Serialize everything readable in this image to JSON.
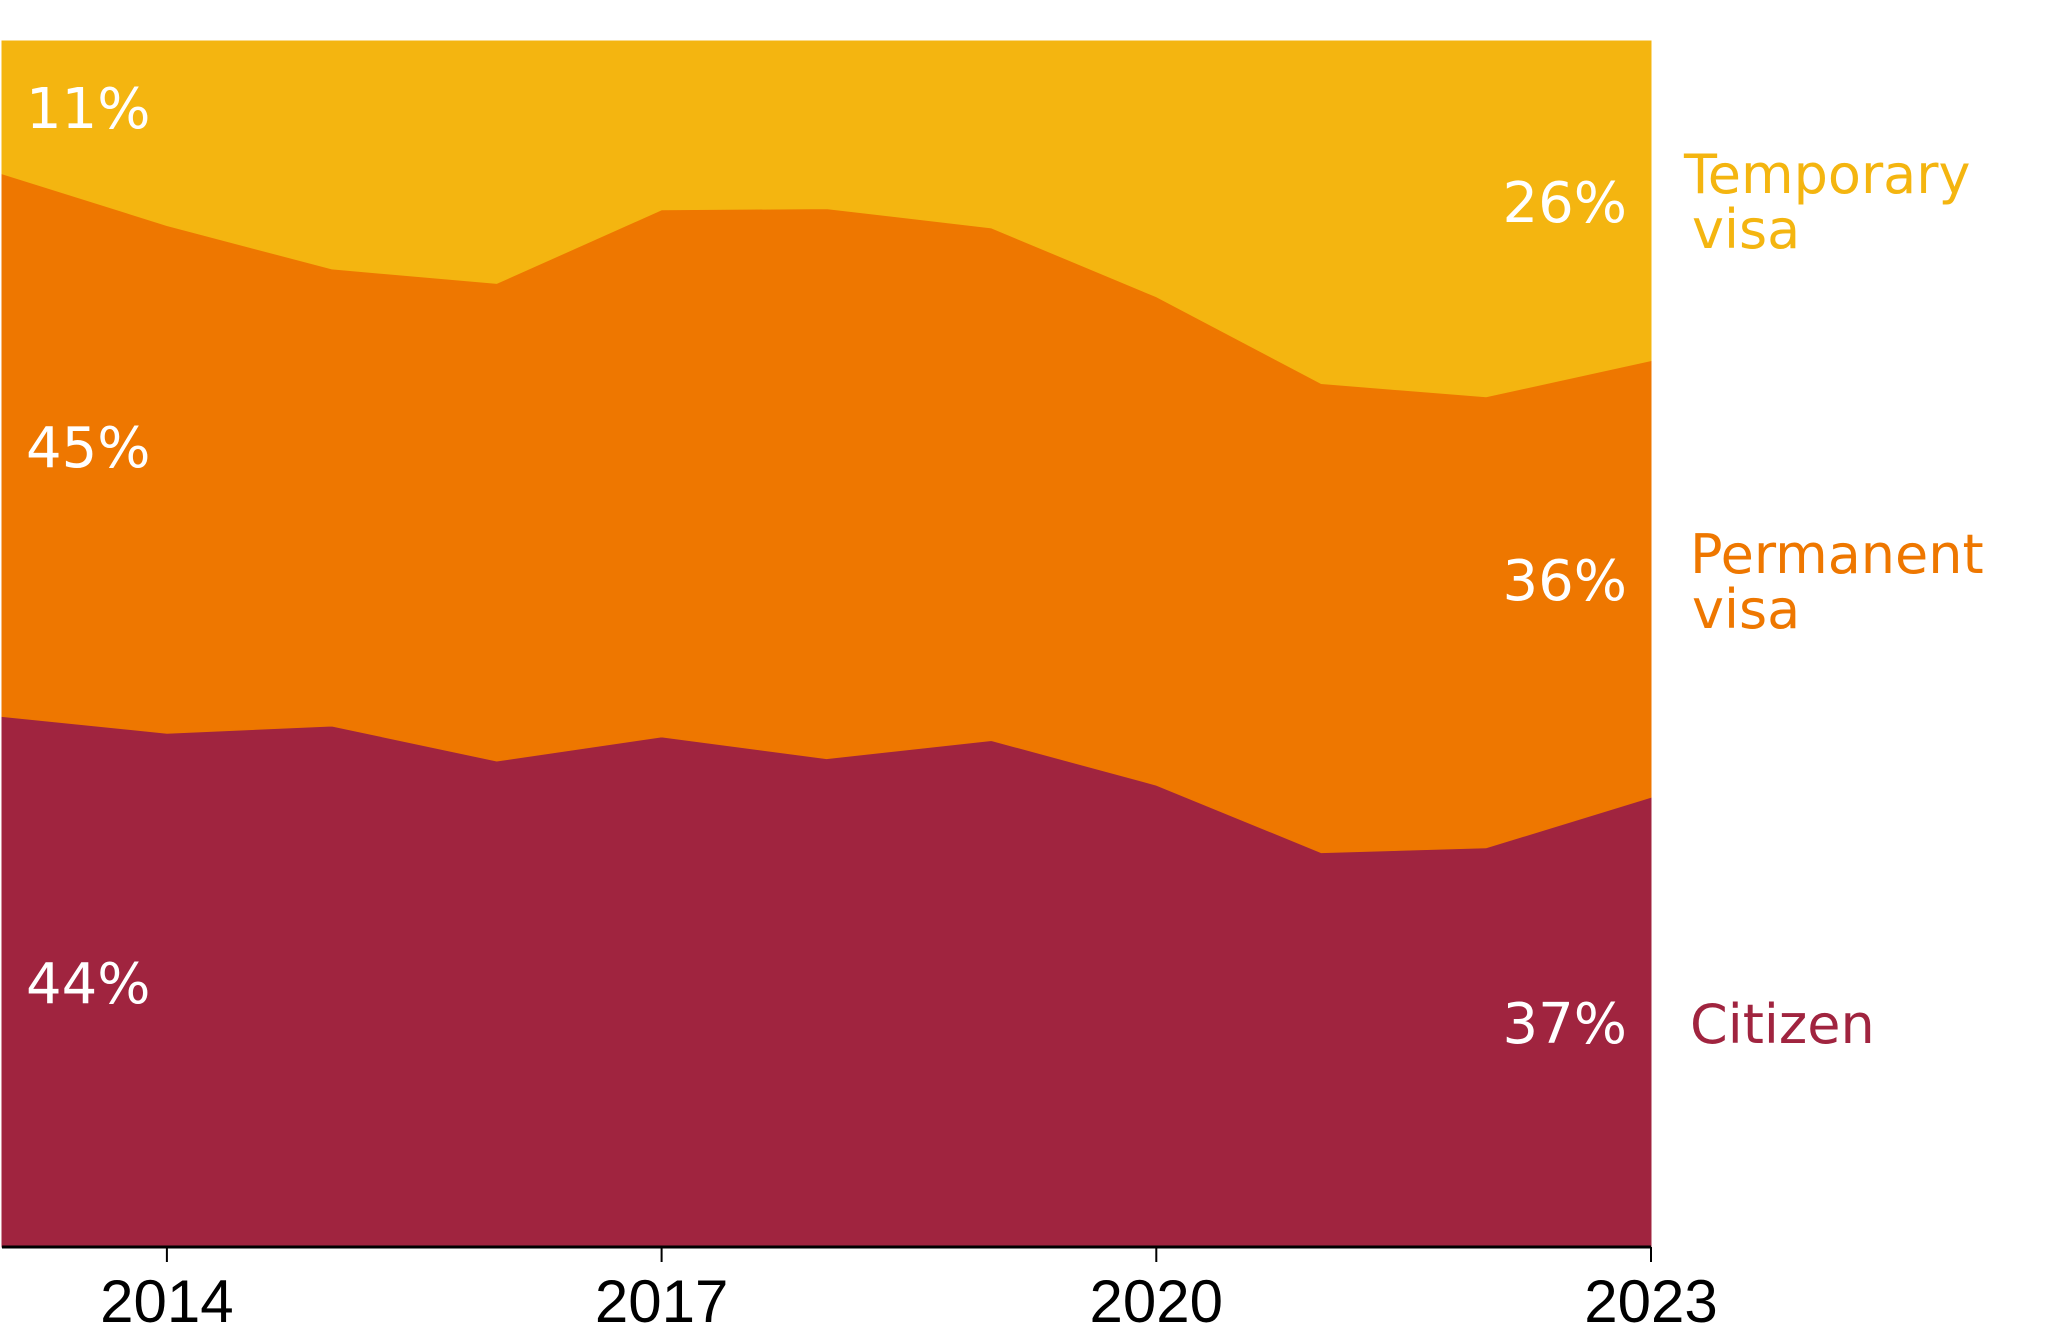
{
  "chart_data": {
    "type": "area",
    "stacked": true,
    "normalized": true,
    "title": "",
    "xlabel": "",
    "ylabel": "",
    "x": [
      2013,
      2014,
      2015,
      2016,
      2017,
      2018,
      2019,
      2020,
      2021,
      2022,
      2023
    ],
    "xlim": [
      2013,
      2023
    ],
    "ylim": [
      0,
      100
    ],
    "x_ticks": [
      2014,
      2017,
      2020,
      2023
    ],
    "x_tick_labels": [
      "2014",
      "2017",
      "2020",
      "2023"
    ],
    "grid": false,
    "legend_placement": "right (inline labels)",
    "series": [
      {
        "name": "Citizen",
        "label_lines": [
          "Citizen"
        ],
        "color": "#A0243F",
        "values": [
          44.0,
          42.6,
          43.2,
          40.3,
          42.3,
          40.5,
          42.0,
          38.3,
          32.7,
          33.1,
          37.3
        ],
        "start_label": "44%",
        "end_label": "37%"
      },
      {
        "name": "Permanent visa",
        "label_lines": [
          "Permanent",
          "visa"
        ],
        "color": "#EE7700",
        "values": [
          45.0,
          42.1,
          37.9,
          39.6,
          43.7,
          45.6,
          42.5,
          40.5,
          38.9,
          37.4,
          36.2
        ],
        "start_label": "45%",
        "end_label": "36%"
      },
      {
        "name": "Temporary visa",
        "label_lines": [
          "Temporary",
          "visa"
        ],
        "color": "#F4B510",
        "values": [
          11.0,
          15.3,
          18.9,
          20.1,
          14.0,
          13.9,
          15.5,
          21.2,
          28.4,
          29.5,
          26.5
        ],
        "start_label": "11%",
        "end_label": "26%"
      }
    ]
  }
}
